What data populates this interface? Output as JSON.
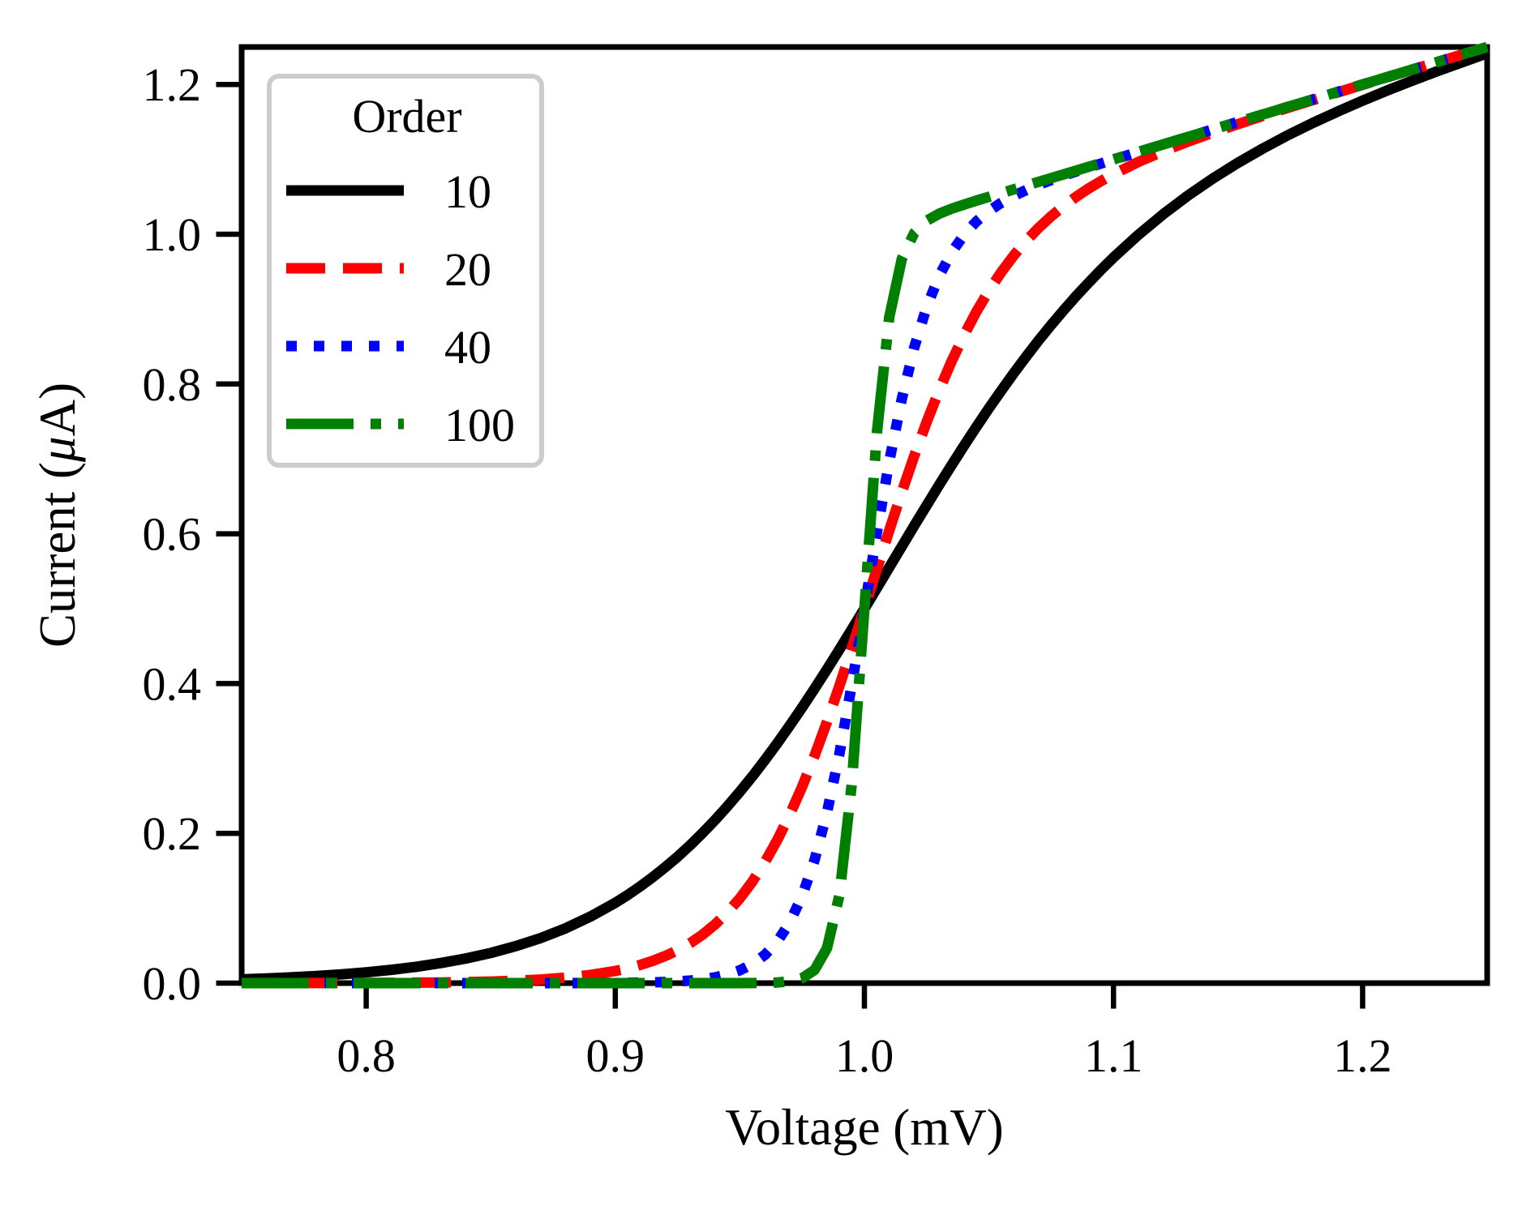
{
  "figure": {
    "background": "#ffffff"
  },
  "chart_data": {
    "type": "line",
    "title": "",
    "xlabel": "Voltage (mV)",
    "ylabel": "Current (μA)",
    "xlim": [
      0.75,
      1.25
    ],
    "ylim": [
      0.0,
      1.25
    ],
    "grid": false,
    "xticks": [
      0.8,
      0.9,
      1.0,
      1.1,
      1.2
    ],
    "xtick_labels": [
      "0.8",
      "0.9",
      "1.0",
      "1.1",
      "1.2"
    ],
    "yticks": [
      0.0,
      0.2,
      0.4,
      0.6,
      0.8,
      1.0,
      1.2
    ],
    "ytick_labels": [
      "0.0",
      "0.2",
      "0.4",
      "0.6",
      "0.8",
      "1.0",
      "1.2"
    ],
    "legend": {
      "title": "Order",
      "position": "upper left"
    },
    "x": [
      0.75,
      0.76,
      0.77,
      0.78,
      0.79,
      0.8,
      0.81,
      0.82,
      0.83,
      0.84,
      0.85,
      0.86,
      0.87,
      0.88,
      0.89,
      0.9,
      0.905,
      0.91,
      0.915,
      0.92,
      0.925,
      0.93,
      0.935,
      0.94,
      0.945,
      0.95,
      0.955,
      0.96,
      0.965,
      0.97,
      0.975,
      0.98,
      0.985,
      0.99,
      0.995,
      1.0,
      1.005,
      1.01,
      1.015,
      1.02,
      1.025,
      1.03,
      1.035,
      1.04,
      1.045,
      1.05,
      1.055,
      1.06,
      1.065,
      1.07,
      1.075,
      1.08,
      1.085,
      1.09,
      1.095,
      1.1,
      1.11,
      1.12,
      1.13,
      1.14,
      1.15,
      1.16,
      1.17,
      1.18,
      1.19,
      1.2,
      1.21,
      1.22,
      1.23,
      1.24,
      1.25
    ],
    "series": [
      {
        "name": "10",
        "color": "#000000",
        "linestyle": "solid",
        "values": [
          0.005,
          0.0062,
          0.0077,
          0.0095,
          0.0117,
          0.0144,
          0.0177,
          0.0218,
          0.0268,
          0.0329,
          0.0403,
          0.0493,
          0.0601,
          0.0732,
          0.0888,
          0.1073,
          0.1177,
          0.1291,
          0.1414,
          0.1546,
          0.1687,
          0.184,
          0.2003,
          0.2176,
          0.236,
          0.2555,
          0.2761,
          0.2976,
          0.3202,
          0.3437,
          0.3681,
          0.3933,
          0.4192,
          0.4457,
          0.4726,
          0.5,
          0.5276,
          0.5553,
          0.583,
          0.6107,
          0.638,
          0.6651,
          0.6916,
          0.7176,
          0.7429,
          0.7677,
          0.7916,
          0.8146,
          0.8369,
          0.8584,
          0.8789,
          0.8986,
          0.9174,
          0.9353,
          0.9525,
          0.9689,
          0.9992,
          1.0268,
          1.0519,
          1.0747,
          1.0955,
          1.1145,
          1.1322,
          1.1486,
          1.1639,
          1.1784,
          1.1921,
          1.2051,
          1.2177,
          1.2298,
          1.2416
        ]
      },
      {
        "name": "20",
        "color": "#ff0000",
        "linestyle": "dashed",
        "values": [
          0.0,
          0.0001,
          0.0001,
          0.0001,
          0.0002,
          0.0003,
          0.0004,
          0.0006,
          0.0009,
          0.0014,
          0.0021,
          0.0032,
          0.0048,
          0.0072,
          0.0109,
          0.0162,
          0.0198,
          0.0242,
          0.0296,
          0.0361,
          0.0438,
          0.0533,
          0.0646,
          0.0782,
          0.0943,
          0.1132,
          0.1355,
          0.1613,
          0.1909,
          0.2246,
          0.2622,
          0.3038,
          0.349,
          0.3973,
          0.4479,
          0.5,
          0.5526,
          0.6047,
          0.6554,
          0.7038,
          0.7494,
          0.7916,
          0.8303,
          0.8653,
          0.8967,
          0.9248,
          0.9497,
          0.9718,
          0.9914,
          1.0087,
          1.024,
          1.0377,
          1.05,
          1.061,
          1.071,
          1.0802,
          1.0965,
          1.1108,
          1.1238,
          1.1358,
          1.1471,
          1.158,
          1.1687,
          1.1791,
          1.1894,
          1.1996,
          1.2097,
          1.2198,
          1.2299,
          1.2399,
          1.2499
        ]
      },
      {
        "name": "40",
        "color": "#0000ff",
        "linestyle": "dotted",
        "values": [
          0,
          0,
          0,
          0,
          0,
          0,
          0,
          0,
          0,
          0,
          0,
          0,
          0,
          0,
          0.0001,
          0.0003,
          0.0004,
          0.0007,
          0.001,
          0.0015,
          0.0023,
          0.0034,
          0.0051,
          0.0077,
          0.0115,
          0.0171,
          0.0254,
          0.0376,
          0.0553,
          0.0807,
          0.1162,
          0.1646,
          0.228,
          0.3069,
          0.3993,
          0.5,
          0.6017,
          0.6969,
          0.78,
          0.8486,
          0.9028,
          0.9443,
          0.9757,
          0.9992,
          1.0172,
          1.0311,
          1.0421,
          1.0513,
          1.0591,
          1.066,
          1.0723,
          1.0782,
          1.0838,
          1.0892,
          1.0944,
          1.0996,
          1.1098,
          1.1199,
          1.13,
          1.14,
          1.15,
          1.16,
          1.17,
          1.18,
          1.19,
          1.2,
          1.21,
          1.22,
          1.23,
          1.24,
          1.25
        ]
      },
      {
        "name": "100",
        "color": "#007f00",
        "linestyle": "dashdot",
        "values": [
          0,
          0,
          0,
          0,
          0,
          0,
          0,
          0,
          0,
          0,
          0,
          0,
          0,
          0,
          0,
          0,
          0,
          0,
          0,
          0,
          0,
          0,
          0,
          0,
          0,
          0,
          0.0001,
          0.0003,
          0.0009,
          0.0024,
          0.0065,
          0.0176,
          0.0467,
          0.118,
          0.2676,
          0.5,
          0.7348,
          0.8896,
          0.9669,
          1.0016,
          1.0181,
          1.0274,
          1.0341,
          1.0396,
          1.0449,
          1.0499,
          1.055,
          1.06,
          1.065,
          1.07,
          1.075,
          1.08,
          1.085,
          1.09,
          1.095,
          1.1,
          1.11,
          1.12,
          1.13,
          1.14,
          1.15,
          1.16,
          1.17,
          1.18,
          1.19,
          1.2,
          1.21,
          1.22,
          1.23,
          1.24,
          1.25
        ]
      }
    ]
  }
}
